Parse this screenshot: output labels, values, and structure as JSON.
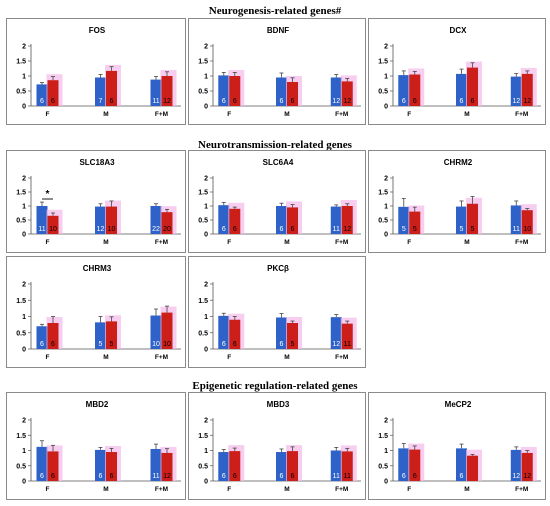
{
  "sections": [
    {
      "title": "Neurogenesis-related genes#"
    },
    {
      "title": "Neurotransmission-related genes"
    },
    {
      "title": "Epigenetic regulation-related genes"
    }
  ],
  "colors": {
    "control": "#2f62c8",
    "treated": "#cc1f1a",
    "highlight": "#f4b8ea",
    "error": "#444444"
  },
  "chart_data": [
    {
      "type": "bar",
      "title": "FOS",
      "categories": [
        "F",
        "M",
        "F+M"
      ],
      "yticks": [
        "0",
        "0.5",
        "1",
        "1.5",
        "2"
      ],
      "ylim": [
        0,
        2
      ],
      "series": [
        {
          "values": [
            0.72,
            0.95,
            0.88
          ],
          "errors": [
            0.06,
            0.1,
            0.1
          ],
          "n": [
            "6",
            "7",
            "11"
          ]
        },
        {
          "values": [
            0.86,
            1.17,
            1.0
          ],
          "errors": [
            0.12,
            0.14,
            0.14
          ],
          "n": [
            "6",
            "6",
            "12"
          ]
        }
      ],
      "annotation": ""
    },
    {
      "type": "bar",
      "title": "BDNF",
      "categories": [
        "F",
        "M",
        "F+M"
      ],
      "yticks": [
        "0",
        "0.5",
        "1",
        "1.5",
        "2"
      ],
      "ylim": [
        0,
        2
      ],
      "series": [
        {
          "values": [
            1.02,
            0.95,
            0.95
          ],
          "errors": [
            0.1,
            0.15,
            0.1
          ],
          "n": [
            "6",
            "6",
            "12"
          ]
        },
        {
          "values": [
            1.0,
            0.8,
            0.82
          ],
          "errors": [
            0.12,
            0.14,
            0.1
          ],
          "n": [
            "6",
            "6",
            "12"
          ]
        }
      ],
      "annotation": ""
    },
    {
      "type": "bar",
      "title": "DCX",
      "categories": [
        "F",
        "M",
        "F+M"
      ],
      "yticks": [
        "0",
        "0.5",
        "1",
        "1.5",
        "2"
      ],
      "ylim": [
        0,
        2
      ],
      "series": [
        {
          "values": [
            1.03,
            1.07,
            0.98
          ],
          "errors": [
            0.14,
            0.16,
            0.1
          ],
          "n": [
            "6",
            "6",
            "12"
          ]
        },
        {
          "values": [
            1.05,
            1.28,
            1.07
          ],
          "errors": [
            0.1,
            0.16,
            0.1
          ],
          "n": [
            "6",
            "6",
            "12"
          ]
        }
      ],
      "annotation": ""
    },
    {
      "type": "bar",
      "title": "SLC18A3",
      "categories": [
        "F",
        "M",
        "F+M"
      ],
      "yticks": [
        "0",
        "0.5",
        "1",
        "1.5",
        "2"
      ],
      "ylim": [
        0,
        2
      ],
      "series": [
        {
          "values": [
            1.0,
            0.98,
            1.0
          ],
          "errors": [
            0.14,
            0.1,
            0.08
          ],
          "n": [
            "11",
            "12",
            "22"
          ]
        },
        {
          "values": [
            0.65,
            0.98,
            0.78
          ],
          "errors": [
            0.1,
            0.2,
            0.1
          ],
          "n": [
            "10",
            "10",
            "20"
          ]
        }
      ],
      "annotation": "*"
    },
    {
      "type": "bar",
      "title": "SLC6A4",
      "categories": [
        "F",
        "M",
        "F+M"
      ],
      "yticks": [
        "0",
        "0.5",
        "1",
        "1.5",
        "2"
      ],
      "ylim": [
        0,
        2
      ],
      "series": [
        {
          "values": [
            1.03,
            1.0,
            0.98
          ],
          "errors": [
            0.1,
            0.1,
            0.06
          ],
          "n": [
            "6",
            "6",
            "11"
          ]
        },
        {
          "values": [
            0.9,
            0.95,
            1.0
          ],
          "errors": [
            0.06,
            0.1,
            0.08
          ],
          "n": [
            "6",
            "6",
            "12"
          ]
        }
      ],
      "annotation": ""
    },
    {
      "type": "bar",
      "title": "CHRM2",
      "categories": [
        "F",
        "M",
        "F+M"
      ],
      "yticks": [
        "0",
        "0.5",
        "1",
        "1.5",
        "2"
      ],
      "ylim": [
        0,
        2
      ],
      "series": [
        {
          "values": [
            0.97,
            0.98,
            1.02
          ],
          "errors": [
            0.3,
            0.2,
            0.16
          ],
          "n": [
            "5",
            "5",
            "11"
          ]
        },
        {
          "values": [
            0.8,
            1.08,
            0.85
          ],
          "errors": [
            0.16,
            0.26,
            0.06
          ],
          "n": [
            "5",
            "5",
            "10"
          ]
        }
      ],
      "annotation": ""
    },
    {
      "type": "bar",
      "title": "CHRM3",
      "categories": [
        "F",
        "M",
        "F+M"
      ],
      "yticks": [
        "0",
        "0.5",
        "1",
        "1.5",
        "2"
      ],
      "ylim": [
        0,
        2
      ],
      "series": [
        {
          "values": [
            0.7,
            0.82,
            1.03
          ],
          "errors": [
            0.06,
            0.18,
            0.2
          ],
          "n": [
            "6",
            "5",
            "10"
          ]
        },
        {
          "values": [
            0.8,
            0.85,
            1.12
          ],
          "errors": [
            0.2,
            0.14,
            0.2
          ],
          "n": [
            "6",
            "5",
            "10"
          ]
        }
      ],
      "annotation": ""
    },
    {
      "type": "bar",
      "title": "PKCβ",
      "categories": [
        "F",
        "M",
        "F+M"
      ],
      "yticks": [
        "0",
        "0.5",
        "1",
        "1.5",
        "2"
      ],
      "ylim": [
        0,
        2
      ],
      "series": [
        {
          "values": [
            1.02,
            0.97,
            0.98
          ],
          "errors": [
            0.08,
            0.12,
            0.08
          ],
          "n": [
            "6",
            "6",
            "12"
          ]
        },
        {
          "values": [
            0.9,
            0.8,
            0.78
          ],
          "errors": [
            0.1,
            0.06,
            0.08
          ],
          "n": [
            "6",
            "5",
            "11"
          ]
        }
      ],
      "annotation": ""
    },
    {
      "type": "bar",
      "title": "MBD2",
      "categories": [
        "F",
        "M",
        "F+M"
      ],
      "yticks": [
        "0",
        "0.5",
        "1",
        "1.5",
        "2"
      ],
      "ylim": [
        0,
        2
      ],
      "series": [
        {
          "values": [
            1.12,
            1.02,
            1.05
          ],
          "errors": [
            0.2,
            0.08,
            0.16
          ],
          "n": [
            "6",
            "6",
            "11"
          ]
        },
        {
          "values": [
            0.97,
            0.95,
            0.92
          ],
          "errors": [
            0.2,
            0.12,
            0.14
          ],
          "n": [
            "6",
            "6",
            "12"
          ]
        }
      ],
      "annotation": ""
    },
    {
      "type": "bar",
      "title": "MBD3",
      "categories": [
        "F",
        "M",
        "F+M"
      ],
      "yticks": [
        "0",
        "0.5",
        "1",
        "1.5",
        "2"
      ],
      "ylim": [
        0,
        2
      ],
      "series": [
        {
          "values": [
            0.95,
            0.95,
            1.0
          ],
          "errors": [
            0.08,
            0.1,
            0.1
          ],
          "n": [
            "6",
            "6",
            "11"
          ]
        },
        {
          "values": [
            0.98,
            0.98,
            0.97
          ],
          "errors": [
            0.1,
            0.14,
            0.1
          ],
          "n": [
            "6",
            "6",
            "11"
          ]
        }
      ],
      "annotation": ""
    },
    {
      "type": "bar",
      "title": "MeCP2",
      "categories": [
        "F",
        "M",
        "F+M"
      ],
      "yticks": [
        "0",
        "0.5",
        "1",
        "1.5",
        "2"
      ],
      "ylim": [
        0,
        2
      ],
      "series": [
        {
          "values": [
            1.07,
            1.07,
            1.02
          ],
          "errors": [
            0.16,
            0.14,
            0.1
          ],
          "n": [
            "6",
            "6",
            "12"
          ]
        },
        {
          "values": [
            1.03,
            0.83,
            0.92
          ],
          "errors": [
            0.12,
            0.04,
            0.08
          ],
          "n": [
            "6",
            "",
            "12"
          ]
        }
      ],
      "annotation": ""
    }
  ]
}
